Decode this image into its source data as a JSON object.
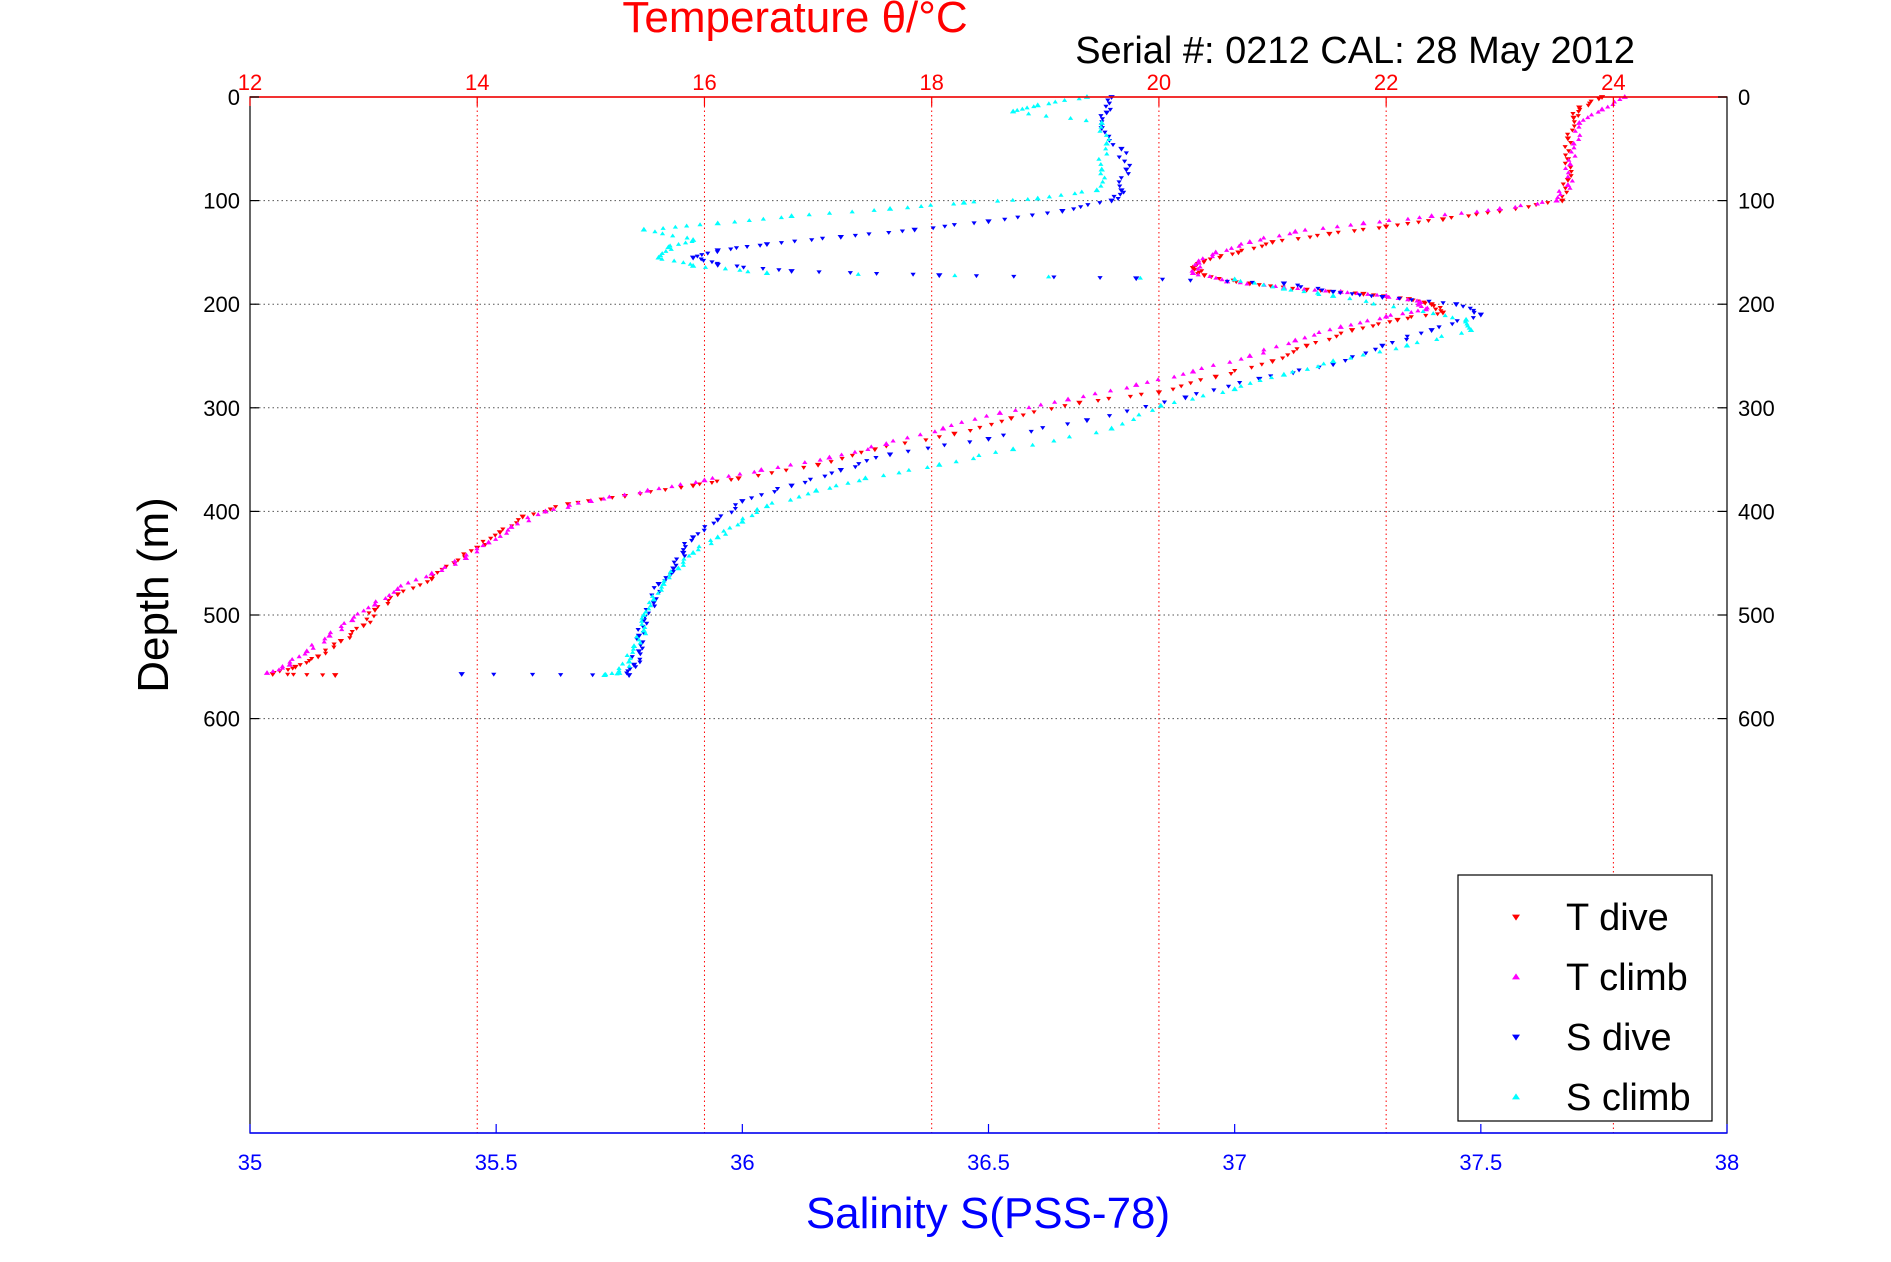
{
  "chart_data": {
    "type": "scatter",
    "title": "Temperature θ/°C",
    "subtitle": "Serial #: 0212  CAL: 28 May 2012",
    "xlabel": "Salinity S(PSS-78)",
    "ylabel": "Depth (m)",
    "temperature_axis": {
      "min": 12,
      "max": 25,
      "ticks": [
        12,
        14,
        16,
        18,
        20,
        22,
        24
      ]
    },
    "salinity_axis": {
      "min": 35,
      "max": 38,
      "ticks": [
        35,
        35.5,
        36,
        36.5,
        37,
        37.5,
        38
      ]
    },
    "depth_axis": {
      "min": 0,
      "max": 1000,
      "ticks": [
        0,
        100,
        200,
        300,
        400,
        500,
        600
      ]
    },
    "grid": true,
    "legend_position": "bottom-right",
    "series": [
      {
        "name": "T dive",
        "axis": "temperature",
        "color": "#ff0000",
        "marker": "triangle-down",
        "points": [
          [
            23.9,
            0
          ],
          [
            23.7,
            10
          ],
          [
            23.65,
            20
          ],
          [
            23.6,
            40
          ],
          [
            23.6,
            60
          ],
          [
            23.6,
            80
          ],
          [
            23.55,
            100
          ],
          [
            23.0,
            110
          ],
          [
            22.5,
            118
          ],
          [
            22.0,
            125
          ],
          [
            21.5,
            132
          ],
          [
            21.0,
            140
          ],
          [
            20.7,
            150
          ],
          [
            20.4,
            158
          ],
          [
            20.3,
            165
          ],
          [
            20.4,
            172
          ],
          [
            20.8,
            180
          ],
          [
            21.3,
            186
          ],
          [
            21.8,
            190
          ],
          [
            22.2,
            195
          ],
          [
            22.4,
            200
          ],
          [
            22.5,
            208
          ],
          [
            22.1,
            215
          ],
          [
            21.7,
            225
          ],
          [
            21.3,
            240
          ],
          [
            21.0,
            255
          ],
          [
            20.5,
            270
          ],
          [
            20.0,
            285
          ],
          [
            19.3,
            295
          ],
          [
            18.7,
            310
          ],
          [
            18.2,
            325
          ],
          [
            17.5,
            340
          ],
          [
            17.0,
            355
          ],
          [
            16.3,
            368
          ],
          [
            15.9,
            375
          ],
          [
            15.3,
            385
          ],
          [
            14.8,
            393
          ],
          [
            14.4,
            405
          ],
          [
            14.2,
            420
          ],
          [
            14.0,
            435
          ],
          [
            13.8,
            450
          ],
          [
            13.6,
            465
          ],
          [
            13.3,
            480
          ],
          [
            13.1,
            495
          ],
          [
            13.0,
            510
          ],
          [
            12.8,
            525
          ],
          [
            12.6,
            540
          ],
          [
            12.4,
            550
          ],
          [
            12.2,
            557
          ],
          [
            12.75,
            558
          ]
        ]
      },
      {
        "name": "T climb",
        "axis": "temperature",
        "color": "#ff00ff",
        "marker": "triangle-up",
        "points": [
          [
            24.1,
            0
          ],
          [
            23.9,
            12
          ],
          [
            23.7,
            25
          ],
          [
            23.65,
            45
          ],
          [
            23.62,
            65
          ],
          [
            23.6,
            85
          ],
          [
            23.5,
            100
          ],
          [
            23.0,
            108
          ],
          [
            22.4,
            115
          ],
          [
            21.8,
            122
          ],
          [
            21.2,
            130
          ],
          [
            20.8,
            140
          ],
          [
            20.5,
            150
          ],
          [
            20.35,
            160
          ],
          [
            20.3,
            170
          ],
          [
            20.6,
            178
          ],
          [
            21.1,
            184
          ],
          [
            21.6,
            188
          ],
          [
            22.0,
            192
          ],
          [
            22.3,
            198
          ],
          [
            22.35,
            205
          ],
          [
            22.0,
            212
          ],
          [
            21.6,
            222
          ],
          [
            21.2,
            235
          ],
          [
            20.8,
            250
          ],
          [
            20.3,
            265
          ],
          [
            19.8,
            278
          ],
          [
            19.2,
            292
          ],
          [
            18.6,
            305
          ],
          [
            18.1,
            320
          ],
          [
            17.6,
            335
          ],
          [
            17.1,
            348
          ],
          [
            16.5,
            360
          ],
          [
            16.0,
            370
          ],
          [
            15.5,
            380
          ],
          [
            15.0,
            390
          ],
          [
            14.6,
            400
          ],
          [
            14.3,
            415
          ],
          [
            14.1,
            430
          ],
          [
            13.9,
            445
          ],
          [
            13.6,
            460
          ],
          [
            13.3,
            475
          ],
          [
            13.1,
            490
          ],
          [
            12.9,
            505
          ],
          [
            12.7,
            520
          ],
          [
            12.5,
            535
          ],
          [
            12.35,
            548
          ],
          [
            12.15,
            556
          ]
        ]
      },
      {
        "name": "S dive",
        "axis": "salinity",
        "color": "#0000ff",
        "marker": "triangle-down",
        "points": [
          [
            36.75,
            0
          ],
          [
            36.74,
            15
          ],
          [
            36.73,
            30
          ],
          [
            36.77,
            50
          ],
          [
            36.78,
            70
          ],
          [
            36.77,
            90
          ],
          [
            36.75,
            100
          ],
          [
            36.65,
            110
          ],
          [
            36.5,
            120
          ],
          [
            36.35,
            128
          ],
          [
            36.2,
            135
          ],
          [
            36.05,
            142
          ],
          [
            35.95,
            148
          ],
          [
            35.9,
            155
          ],
          [
            35.95,
            162
          ],
          [
            36.1,
            168
          ],
          [
            36.4,
            172
          ],
          [
            36.8,
            175
          ],
          [
            37.1,
            180
          ],
          [
            37.2,
            188
          ],
          [
            37.3,
            193
          ],
          [
            37.45,
            200
          ],
          [
            37.5,
            210
          ],
          [
            37.4,
            225
          ],
          [
            37.3,
            240
          ],
          [
            37.2,
            258
          ],
          [
            37.05,
            272
          ],
          [
            36.9,
            290
          ],
          [
            36.7,
            312
          ],
          [
            36.5,
            330
          ],
          [
            36.3,
            345
          ],
          [
            36.2,
            360
          ],
          [
            36.1,
            375
          ],
          [
            36.0,
            390
          ],
          [
            35.95,
            408
          ],
          [
            35.9,
            425
          ],
          [
            35.88,
            440
          ],
          [
            35.86,
            455
          ],
          [
            35.83,
            470
          ],
          [
            35.82,
            488
          ],
          [
            35.8,
            505
          ],
          [
            35.79,
            520
          ],
          [
            35.79,
            535
          ],
          [
            35.78,
            548
          ],
          [
            35.77,
            558
          ],
          [
            35.43,
            557
          ]
        ]
      },
      {
        "name": "S climb",
        "axis": "salinity",
        "color": "#00ffff",
        "marker": "triangle-up",
        "points": [
          [
            36.7,
            0
          ],
          [
            36.6,
            8
          ],
          [
            36.55,
            14
          ],
          [
            36.73,
            25
          ],
          [
            36.74,
            45
          ],
          [
            36.73,
            70
          ],
          [
            36.72,
            90
          ],
          [
            36.6,
            98
          ],
          [
            36.45,
            102
          ],
          [
            36.3,
            108
          ],
          [
            36.1,
            115
          ],
          [
            35.95,
            122
          ],
          [
            35.8,
            128
          ],
          [
            35.9,
            138
          ],
          [
            35.85,
            145
          ],
          [
            35.83,
            155
          ],
          [
            35.9,
            163
          ],
          [
            36.05,
            170
          ],
          [
            37.0,
            176
          ],
          [
            37.1,
            185
          ],
          [
            37.2,
            192
          ],
          [
            37.35,
            205
          ],
          [
            37.47,
            215
          ],
          [
            37.48,
            225
          ],
          [
            37.35,
            240
          ],
          [
            37.2,
            255
          ],
          [
            37.1,
            268
          ],
          [
            37.0,
            282
          ],
          [
            36.85,
            298
          ],
          [
            36.75,
            320
          ],
          [
            36.55,
            340
          ],
          [
            36.4,
            355
          ],
          [
            36.25,
            368
          ],
          [
            36.15,
            380
          ],
          [
            36.05,
            395
          ],
          [
            36.0,
            410
          ],
          [
            35.95,
            425
          ],
          [
            35.9,
            440
          ],
          [
            35.87,
            455
          ],
          [
            35.84,
            470
          ],
          [
            35.82,
            485
          ],
          [
            35.8,
            500
          ],
          [
            35.8,
            515
          ],
          [
            35.78,
            530
          ],
          [
            35.77,
            545
          ],
          [
            35.75,
            556
          ],
          [
            35.72,
            558
          ]
        ]
      }
    ]
  }
}
